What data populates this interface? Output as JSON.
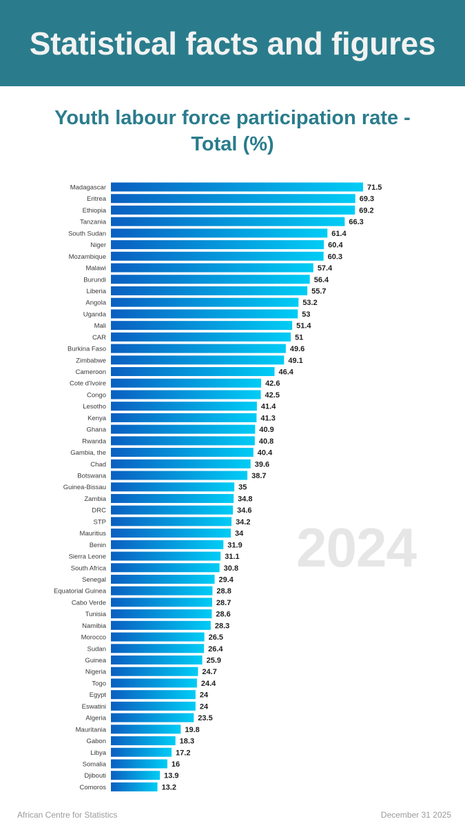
{
  "header": {
    "title": "Statistical facts and figures"
  },
  "watermark": "2024",
  "footer": {
    "source": "African Centre for Statistics",
    "date": "December 31 2025"
  },
  "colors": {
    "banner": "#2a7c8c",
    "title": "#2a7c8c",
    "bar_start": "#0a5fc0",
    "bar_end": "#00ccf5"
  },
  "chart_data": {
    "type": "bar",
    "orientation": "horizontal",
    "title": "Youth labour force participation rate - Total (%)",
    "title_lines": [
      "Youth labour force participation rate -",
      "Total (%)"
    ],
    "xlabel": "",
    "ylabel": "",
    "grid": false,
    "legend": "none",
    "xlim": [
      0,
      71.5
    ],
    "categories": [
      "Madagascar",
      "Eritrea",
      "Ethiopia",
      "Tanzania",
      "South Sudan",
      "Niger",
      "Mozambique",
      "Malawi",
      "Burundi",
      "Liberia",
      "Angola",
      "Uganda",
      "Mali",
      "CAR",
      "Burkina Faso",
      "Zimbabwe",
      "Cameroon",
      "Cote d'Ivoire",
      "Congo",
      "Lesotho",
      "Kenya",
      "Ghana",
      "Rwanda",
      "Gambia, the",
      "Chad",
      "Botswana",
      "Guinea-Bissau",
      "Zambia",
      "DRC",
      "STP",
      "Mauritius",
      "Benin",
      "Sierra Leone",
      "South Africa",
      "Senegal",
      "Equatorial Guinea",
      "Cabo Verde",
      "Tunisia",
      "Namibia",
      "Morocco",
      "Sudan",
      "Guinea",
      "Nigeria",
      "Togo",
      "Egypt",
      "Eswatini",
      "Algeria",
      "Mauritania",
      "Gabon",
      "Libya",
      "Somalia",
      "Djibouti",
      "Comoros"
    ],
    "values": [
      71.5,
      69.3,
      69.2,
      66.3,
      61.4,
      60.4,
      60.3,
      57.4,
      56.4,
      55.7,
      53.2,
      53,
      51.4,
      51,
      49.6,
      49.1,
      46.4,
      42.6,
      42.5,
      41.4,
      41.3,
      40.9,
      40.8,
      40.4,
      39.6,
      38.7,
      35,
      34.8,
      34.6,
      34.2,
      34,
      31.9,
      31.1,
      30.8,
      29.4,
      28.8,
      28.7,
      28.6,
      28.3,
      26.5,
      26.4,
      25.9,
      24.7,
      24.4,
      24,
      24,
      23.5,
      19.8,
      18.3,
      17.2,
      16,
      13.9,
      13.2
    ],
    "value_labels": [
      "71.5",
      "69.3",
      "69.2",
      "66.3",
      "61.4",
      "60.4",
      "60.3",
      "57.4",
      "56.4",
      "55.7",
      "53.2",
      "53",
      "51.4",
      "51",
      "49.6",
      "49.1",
      "46.4",
      "42.6",
      "42.5",
      "41.4",
      "41.3",
      "40.9",
      "40.8",
      "40.4",
      "39.6",
      "38.7",
      "35",
      "34.8",
      "34.6",
      "34.2",
      "34",
      "31.9",
      "31.1",
      "30.8",
      "29.4",
      "28.8",
      "28.7",
      "28.6",
      "28.3",
      "26.5",
      "26.4",
      "25.9",
      "24.7",
      "24.4",
      "24",
      "24",
      "23.5",
      "19.8",
      "18.3",
      "17.2",
      "16",
      "13.9",
      "13.2"
    ]
  }
}
